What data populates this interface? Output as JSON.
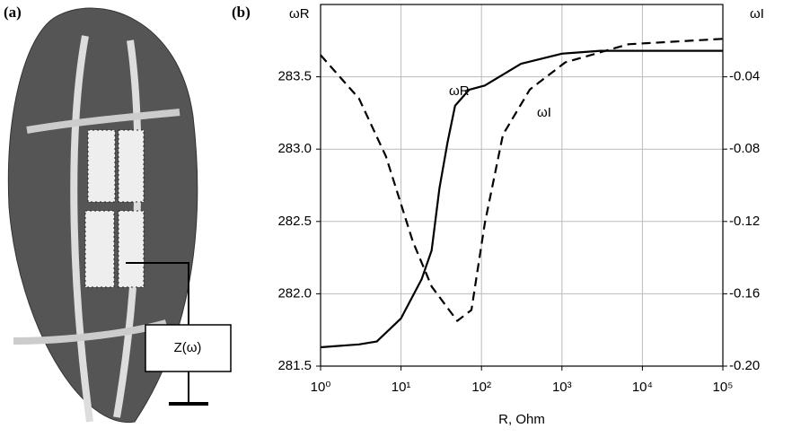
{
  "panel_a": {
    "label": "(a)",
    "impedance_label": "Z(ω)"
  },
  "chart_data": {
    "type": "line",
    "panel_label": "(b)",
    "x_label": "R, Ohm",
    "y_label": "ωR",
    "y2_label": "ωI",
    "xscale": "log",
    "grid": true,
    "xlim": [
      1,
      100000
    ],
    "xticks": [
      {
        "value": 1,
        "label": "10⁰"
      },
      {
        "value": 10,
        "label": "10¹"
      },
      {
        "value": 100,
        "label": "10²"
      },
      {
        "value": 1000,
        "label": "10³"
      },
      {
        "value": 10000,
        "label": "10⁴"
      },
      {
        "value": 100000,
        "label": "10⁵"
      }
    ],
    "ylim": [
      281.5,
      284.0
    ],
    "yticks": [
      281.5,
      {
        "value": 282,
        "label": "282.0"
      },
      282.5,
      {
        "value": 283,
        "label": "283.0"
      },
      283.5
    ],
    "y2lim": [
      -0.2,
      0
    ],
    "y2ticks": [
      {
        "value": -0.2,
        "label": "-0.20"
      },
      -0.16,
      -0.12,
      -0.08,
      -0.04
    ],
    "series": [
      {
        "name": "ωR",
        "color": "#000000",
        "dash": false,
        "x": [
          1,
          3,
          5,
          10,
          18,
          24,
          30,
          38,
          47,
          70,
          110,
          310,
          1000,
          3000,
          10000,
          100000
        ],
        "values": [
          281.63,
          281.65,
          281.67,
          281.83,
          282.1,
          282.3,
          282.73,
          283.05,
          283.3,
          283.41,
          283.44,
          283.59,
          283.66,
          283.68,
          283.68,
          283.68
        ]
      },
      {
        "name": "ωI",
        "color": "#000000",
        "dash": true,
        "axis": "y2",
        "x": [
          1,
          3,
          6.5,
          14,
          24,
          50,
          75,
          110,
          185,
          400,
          1100,
          6700,
          100000
        ],
        "values": [
          -0.028,
          -0.052,
          -0.084,
          -0.131,
          -0.156,
          -0.175,
          -0.169,
          -0.121,
          -0.072,
          -0.047,
          -0.032,
          -0.022,
          -0.019
        ]
      }
    ]
  }
}
